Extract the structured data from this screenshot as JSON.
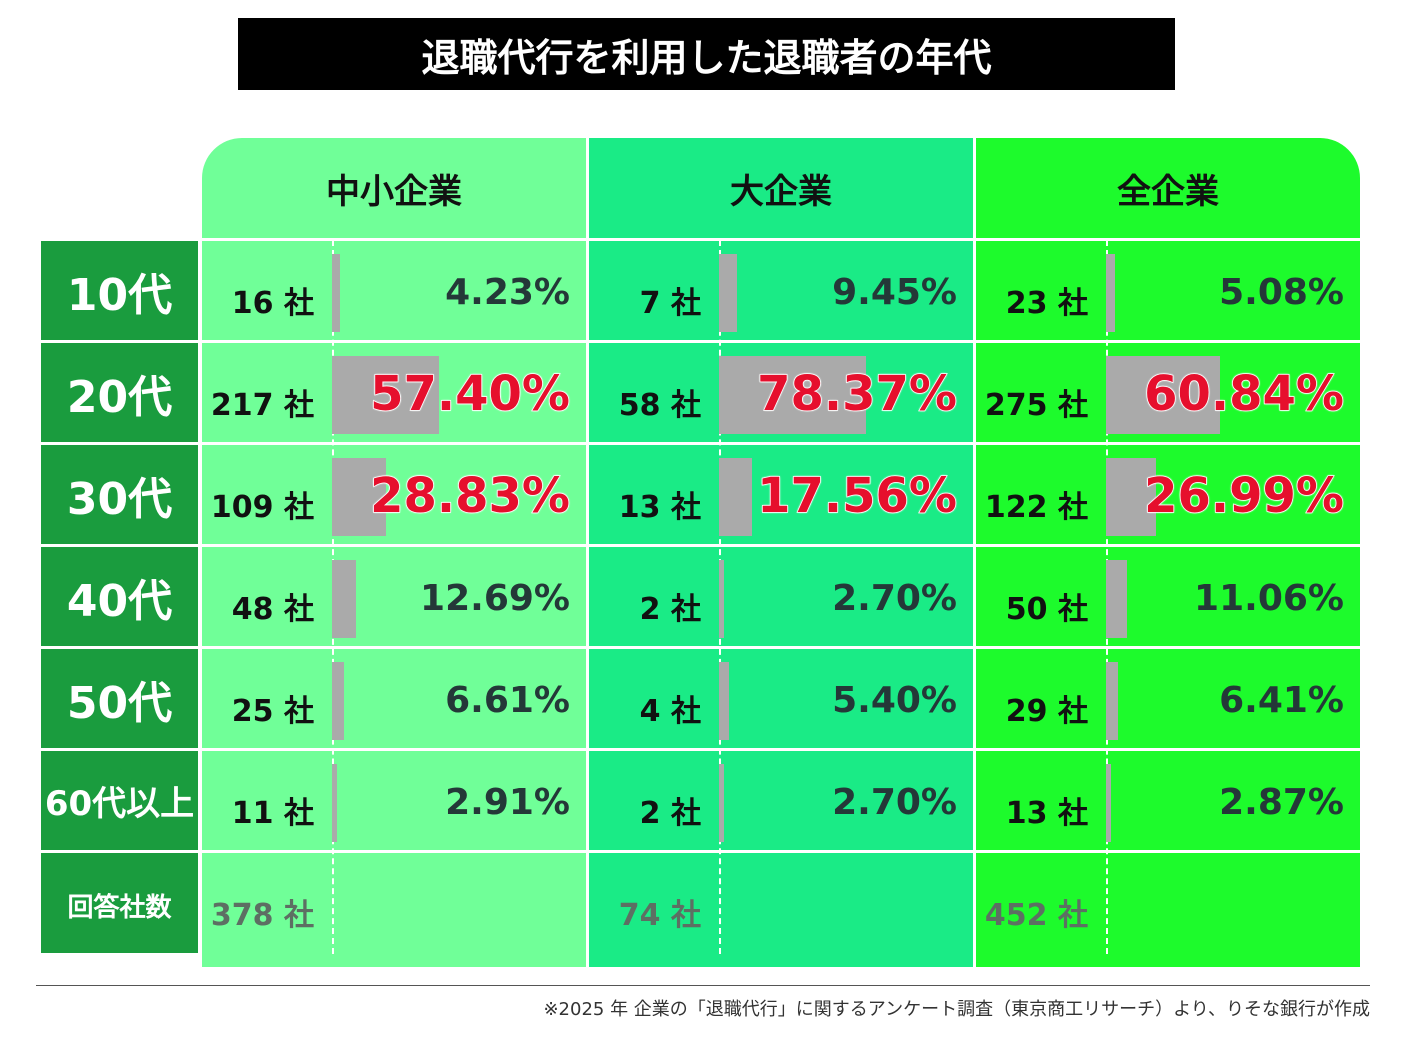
{
  "title": "退職代行を利用した退職者の年代",
  "columns": [
    "中小企業",
    "大企業",
    "全企業"
  ],
  "column_colors": [
    "#70ff98",
    "#1aeb86",
    "#1dfb2c"
  ],
  "row_label_color": "#1a9c3e",
  "bar_color": "#aaaaaa",
  "highlight_color": "#e60f2d",
  "rows": [
    {
      "label": "10代",
      "highlight": false,
      "cells": [
        {
          "count": "16 社",
          "pct": 4.23,
          "pct_label": "4.23%"
        },
        {
          "count": "7 社",
          "pct": 9.45,
          "pct_label": "9.45%"
        },
        {
          "count": "23 社",
          "pct": 5.08,
          "pct_label": "5.08%"
        }
      ]
    },
    {
      "label": "20代",
      "highlight": true,
      "cells": [
        {
          "count": "217 社",
          "pct": 57.4,
          "pct_label": "57.40%"
        },
        {
          "count": "58 社",
          "pct": 78.37,
          "pct_label": "78.37%"
        },
        {
          "count": "275 社",
          "pct": 60.84,
          "pct_label": "60.84%"
        }
      ]
    },
    {
      "label": "30代",
      "highlight": true,
      "cells": [
        {
          "count": "109 社",
          "pct": 28.83,
          "pct_label": "28.83%"
        },
        {
          "count": "13 社",
          "pct": 17.56,
          "pct_label": "17.56%"
        },
        {
          "count": "122 社",
          "pct": 26.99,
          "pct_label": "26.99%"
        }
      ]
    },
    {
      "label": "40代",
      "highlight": false,
      "cells": [
        {
          "count": "48 社",
          "pct": 12.69,
          "pct_label": "12.69%"
        },
        {
          "count": "2 社",
          "pct": 2.7,
          "pct_label": "2.70%"
        },
        {
          "count": "50 社",
          "pct": 11.06,
          "pct_label": "11.06%"
        }
      ]
    },
    {
      "label": "50代",
      "highlight": false,
      "cells": [
        {
          "count": "25 社",
          "pct": 6.61,
          "pct_label": "6.61%"
        },
        {
          "count": "4 社",
          "pct": 5.4,
          "pct_label": "5.40%"
        },
        {
          "count": "29 社",
          "pct": 6.41,
          "pct_label": "6.41%"
        }
      ]
    },
    {
      "label": "60代以上",
      "highlight": false,
      "cells": [
        {
          "count": "11 社",
          "pct": 2.91,
          "pct_label": "2.91%"
        },
        {
          "count": "2 社",
          "pct": 2.7,
          "pct_label": "2.70%"
        },
        {
          "count": "13 社",
          "pct": 2.87,
          "pct_label": "2.87%"
        }
      ]
    }
  ],
  "total": {
    "label": "回答社数",
    "counts": [
      "378 社",
      "74 社",
      "452 社"
    ]
  },
  "note": "※2025 年 企業の「退職代行」に関するアンケート調査（東京商工リサーチ）より、りそな銀行が作成"
}
